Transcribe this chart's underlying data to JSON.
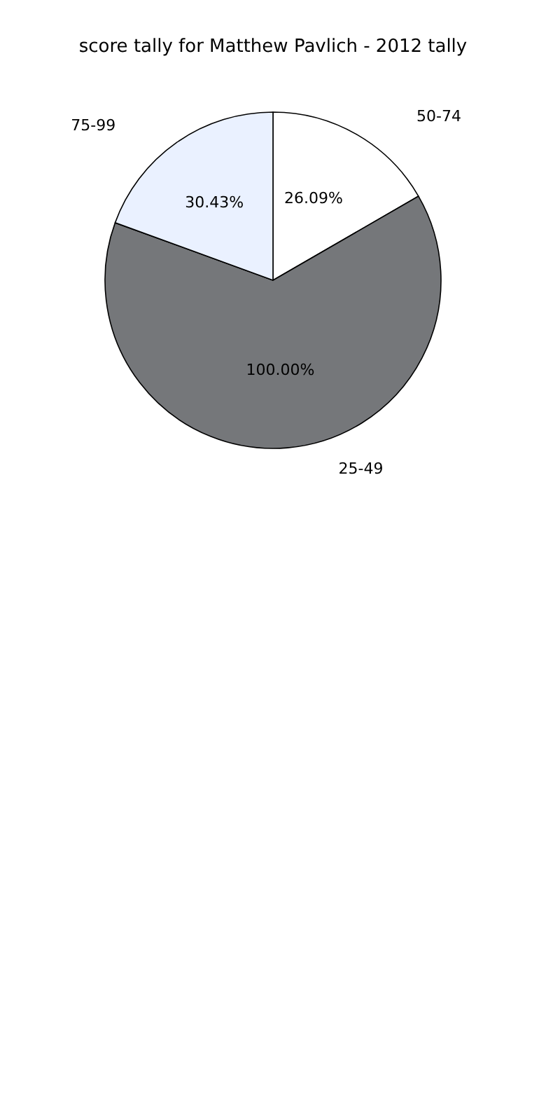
{
  "chart_data": {
    "type": "pie",
    "title": "score tally for Matthew Pavlich - 2012 tally",
    "categories": [
      "50-74",
      "25-49",
      "75-99"
    ],
    "values": [
      26.09,
      100,
      30.43
    ],
    "value_labels": [
      "26.09%",
      "100.00%",
      "30.43%"
    ],
    "colors": [
      "#ffffff",
      "#75777a",
      "#eaf1ff"
    ],
    "legend": false
  }
}
